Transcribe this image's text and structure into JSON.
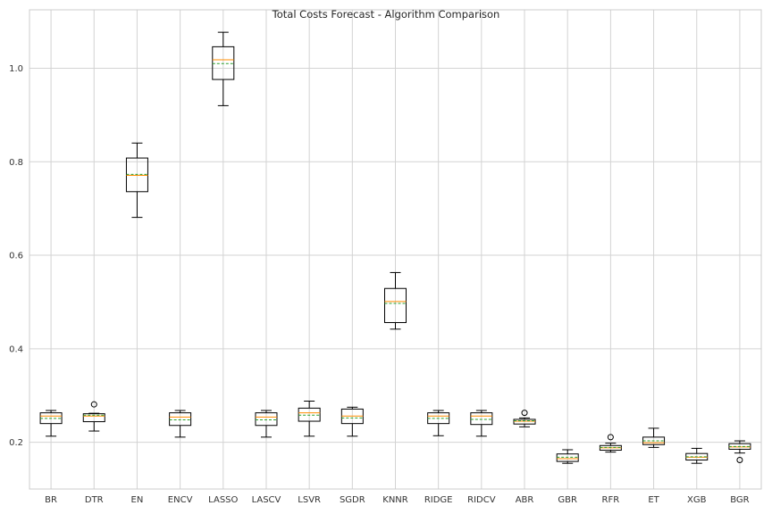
{
  "chart_data": {
    "type": "boxplot",
    "title": "Total Costs Forecast - Algorithm Comparison",
    "xlabel": "",
    "ylabel": "",
    "ylim": [
      0.1,
      1.125
    ],
    "yticks": [
      0.2,
      0.4,
      0.6,
      0.8,
      1.0
    ],
    "ytick_labels": [
      "0.2",
      "0.4",
      "0.6",
      "0.8",
      "1.0"
    ],
    "grid": true,
    "show_means": true,
    "mean_style": "dashed line",
    "colors": {
      "box": "#000000",
      "median": "#ff8c00",
      "mean": "#2ca02c",
      "grid": "#d3d3d3"
    },
    "categories": [
      "BR",
      "DTR",
      "EN",
      "ENCV",
      "LASSO",
      "LASCV",
      "LSVR",
      "SGDR",
      "KNNR",
      "RIDGE",
      "RIDCV",
      "ABR",
      "GBR",
      "RFR",
      "ET",
      "XGB",
      "BGR"
    ],
    "boxes": [
      {
        "name": "BR",
        "whislo": 0.213,
        "q1": 0.24,
        "med": 0.256,
        "mean": 0.251,
        "q3": 0.263,
        "whishi": 0.268,
        "fliers": []
      },
      {
        "name": "DTR",
        "whislo": 0.224,
        "q1": 0.244,
        "med": 0.256,
        "mean": 0.258,
        "q3": 0.261,
        "whishi": 0.262,
        "fliers": [
          0.281
        ]
      },
      {
        "name": "EN",
        "whislo": 0.681,
        "q1": 0.736,
        "med": 0.771,
        "mean": 0.773,
        "q3": 0.808,
        "whishi": 0.84,
        "fliers": []
      },
      {
        "name": "ENCV",
        "whislo": 0.211,
        "q1": 0.236,
        "med": 0.254,
        "mean": 0.248,
        "q3": 0.263,
        "whishi": 0.268,
        "fliers": []
      },
      {
        "name": "LASSO",
        "whislo": 0.92,
        "q1": 0.976,
        "med": 1.018,
        "mean": 1.01,
        "q3": 1.046,
        "whishi": 1.077,
        "fliers": []
      },
      {
        "name": "LASCV",
        "whislo": 0.211,
        "q1": 0.236,
        "med": 0.254,
        "mean": 0.248,
        "q3": 0.263,
        "whishi": 0.268,
        "fliers": []
      },
      {
        "name": "LSVR",
        "whislo": 0.213,
        "q1": 0.245,
        "med": 0.263,
        "mean": 0.258,
        "q3": 0.273,
        "whishi": 0.288,
        "fliers": []
      },
      {
        "name": "SGDR",
        "whislo": 0.213,
        "q1": 0.24,
        "med": 0.256,
        "mean": 0.252,
        "q3": 0.271,
        "whishi": 0.275,
        "fliers": []
      },
      {
        "name": "KNNR",
        "whislo": 0.442,
        "q1": 0.456,
        "med": 0.501,
        "mean": 0.497,
        "q3": 0.529,
        "whishi": 0.563,
        "fliers": []
      },
      {
        "name": "RIDGE",
        "whislo": 0.214,
        "q1": 0.24,
        "med": 0.256,
        "mean": 0.251,
        "q3": 0.263,
        "whishi": 0.268,
        "fliers": []
      },
      {
        "name": "RIDCV",
        "whislo": 0.213,
        "q1": 0.238,
        "med": 0.256,
        "mean": 0.249,
        "q3": 0.263,
        "whishi": 0.268,
        "fliers": []
      },
      {
        "name": "ABR",
        "whislo": 0.233,
        "q1": 0.239,
        "med": 0.245,
        "mean": 0.246,
        "q3": 0.249,
        "whishi": 0.252,
        "fliers": [
          0.263
        ]
      },
      {
        "name": "GBR",
        "whislo": 0.155,
        "q1": 0.159,
        "med": 0.165,
        "mean": 0.168,
        "q3": 0.175,
        "whishi": 0.184,
        "fliers": []
      },
      {
        "name": "RFR",
        "whislo": 0.179,
        "q1": 0.183,
        "med": 0.188,
        "mean": 0.189,
        "q3": 0.193,
        "whishi": 0.198,
        "fliers": [
          0.211
        ]
      },
      {
        "name": "ET",
        "whislo": 0.189,
        "q1": 0.195,
        "med": 0.199,
        "mean": 0.203,
        "q3": 0.211,
        "whishi": 0.23,
        "fliers": []
      },
      {
        "name": "XGB",
        "whislo": 0.155,
        "q1": 0.162,
        "med": 0.168,
        "mean": 0.169,
        "q3": 0.176,
        "whishi": 0.187,
        "fliers": []
      },
      {
        "name": "BGR",
        "whislo": 0.177,
        "q1": 0.185,
        "med": 0.19,
        "mean": 0.191,
        "q3": 0.197,
        "whishi": 0.203,
        "fliers": [
          0.162
        ]
      }
    ]
  }
}
